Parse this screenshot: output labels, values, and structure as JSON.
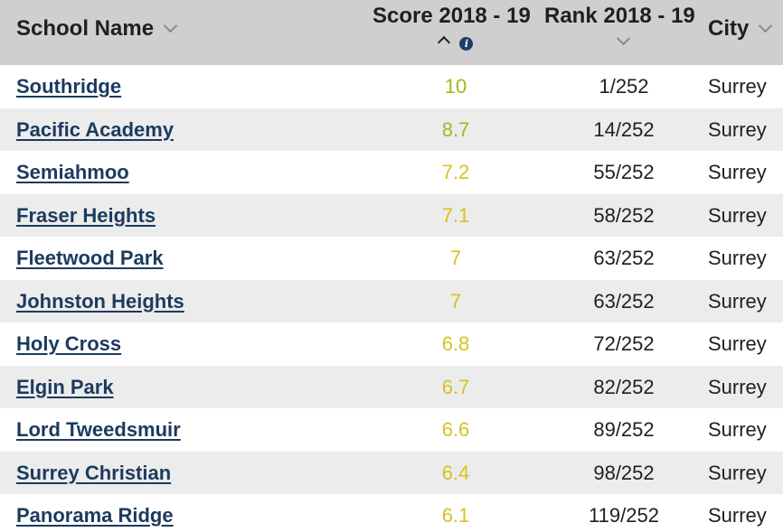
{
  "headers": {
    "school_name": "School Name",
    "score": "Score 2018 - 19",
    "rank": "Rank 2018 - 19",
    "city": "City"
  },
  "icons": {
    "sort_dropdown": "chevron-down-icon",
    "sort_ascending": "chevron-up-icon",
    "info": "info-icon"
  },
  "colors": {
    "header_bg": "#cfcfcf",
    "alt_row_bg": "#ececec",
    "link": "#1c3a5e",
    "score_high": "#9dbb1e",
    "score_mid": "#d8c21e"
  },
  "rows": [
    {
      "name": "Southridge",
      "score": "10",
      "rank": "1/252",
      "city": "Surrey",
      "score_color": "#9dbb1e"
    },
    {
      "name": "Pacific Academy",
      "score": "8.7",
      "rank": "14/252",
      "city": "Surrey",
      "score_color": "#9dbb1e"
    },
    {
      "name": "Semiahmoo",
      "score": "7.2",
      "rank": "55/252",
      "city": "Surrey",
      "score_color": "#d8c21e"
    },
    {
      "name": "Fraser Heights",
      "score": "7.1",
      "rank": "58/252",
      "city": "Surrey",
      "score_color": "#d8c21e"
    },
    {
      "name": "Fleetwood Park",
      "score": "7",
      "rank": "63/252",
      "city": "Surrey",
      "score_color": "#d8c21e"
    },
    {
      "name": "Johnston Heights",
      "score": "7",
      "rank": "63/252",
      "city": "Surrey",
      "score_color": "#d8c21e"
    },
    {
      "name": "Holy Cross",
      "score": "6.8",
      "rank": "72/252",
      "city": "Surrey",
      "score_color": "#d8c21e"
    },
    {
      "name": "Elgin Park",
      "score": "6.7",
      "rank": "82/252",
      "city": "Surrey",
      "score_color": "#d8c21e"
    },
    {
      "name": "Lord Tweedsmuir",
      "score": "6.6",
      "rank": "89/252",
      "city": "Surrey",
      "score_color": "#d8c21e"
    },
    {
      "name": "Surrey Christian",
      "score": "6.4",
      "rank": "98/252",
      "city": "Surrey",
      "score_color": "#d8c21e"
    },
    {
      "name": "Panorama Ridge",
      "score": "6.1",
      "rank": "119/252",
      "city": "Surrey",
      "score_color": "#d8c21e"
    }
  ]
}
